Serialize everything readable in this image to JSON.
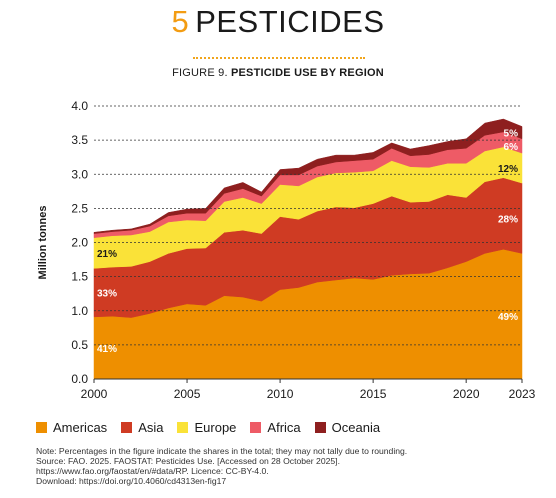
{
  "header": {
    "chapter_number": "5",
    "chapter_title": "PESTICIDES",
    "figure_prefix": "FIGURE 9. ",
    "figure_title": "PESTICIDE USE BY REGION"
  },
  "chart_data": {
    "type": "area",
    "stacked": true,
    "ylabel": "Million tonnes",
    "xlabel": "",
    "x": [
      2000,
      2001,
      2002,
      2003,
      2004,
      2005,
      2006,
      2007,
      2008,
      2009,
      2010,
      2011,
      2012,
      2013,
      2014,
      2015,
      2016,
      2017,
      2018,
      2019,
      2020,
      2021,
      2022,
      2023
    ],
    "xlim": [
      2000,
      2023
    ],
    "ylim": [
      0,
      4.0
    ],
    "grid": "horizontal-dotted",
    "x_ticks": [
      "2000",
      "2005",
      "2010",
      "2015",
      "2020",
      "2023"
    ],
    "x_tick_values": [
      2000,
      2005,
      2010,
      2015,
      2020,
      2023
    ],
    "y_ticks": [
      "0.0",
      "0.5",
      "1.0",
      "1.5",
      "2.0",
      "2.5",
      "3.0",
      "3.5",
      "4.0"
    ],
    "y_tick_values": [
      0,
      0.5,
      1.0,
      1.5,
      2.0,
      2.5,
      3.0,
      3.5,
      4.0
    ],
    "series": [
      {
        "name": "Americas",
        "color": "#ee8f00",
        "values": [
          0.91,
          0.92,
          0.9,
          0.96,
          1.04,
          1.1,
          1.08,
          1.22,
          1.2,
          1.14,
          1.31,
          1.34,
          1.42,
          1.45,
          1.48,
          1.46,
          1.52,
          1.54,
          1.55,
          1.63,
          1.72,
          1.84,
          1.9,
          1.84
        ]
      },
      {
        "name": "Asia",
        "color": "#cf3b23",
        "values": [
          0.71,
          0.72,
          0.75,
          0.76,
          0.8,
          0.81,
          0.84,
          0.93,
          0.98,
          0.99,
          1.07,
          1.0,
          1.04,
          1.07,
          1.03,
          1.11,
          1.16,
          1.05,
          1.05,
          1.07,
          0.94,
          1.05,
          1.05,
          1.03
        ]
      },
      {
        "name": "Europe",
        "color": "#fae238",
        "values": [
          0.45,
          0.46,
          0.46,
          0.44,
          0.46,
          0.42,
          0.4,
          0.45,
          0.48,
          0.44,
          0.47,
          0.49,
          0.5,
          0.5,
          0.52,
          0.48,
          0.52,
          0.52,
          0.5,
          0.46,
          0.5,
          0.45,
          0.45,
          0.44
        ]
      },
      {
        "name": "Africa",
        "color": "#ee5b66",
        "values": [
          0.06,
          0.06,
          0.07,
          0.08,
          0.09,
          0.1,
          0.11,
          0.12,
          0.13,
          0.11,
          0.14,
          0.16,
          0.16,
          0.16,
          0.17,
          0.17,
          0.18,
          0.16,
          0.19,
          0.2,
          0.22,
          0.23,
          0.22,
          0.21
        ]
      },
      {
        "name": "Oceania",
        "color": "#8e1f1f",
        "values": [
          0.02,
          0.02,
          0.02,
          0.03,
          0.05,
          0.06,
          0.07,
          0.08,
          0.09,
          0.06,
          0.08,
          0.1,
          0.1,
          0.1,
          0.08,
          0.1,
          0.08,
          0.1,
          0.13,
          0.12,
          0.14,
          0.18,
          0.19,
          0.18
        ]
      }
    ],
    "annotations": {
      "start": [
        {
          "series": "Americas",
          "label": "41%",
          "color": "#ffffff"
        },
        {
          "series": "Asia",
          "label": "33%",
          "color": "#ffffff"
        },
        {
          "series": "Europe",
          "label": "21%",
          "color": "#1a1a1a"
        }
      ],
      "end": [
        {
          "series": "Americas",
          "label": "49%",
          "color": "#ffffff"
        },
        {
          "series": "Asia",
          "label": "28%",
          "color": "#ffffff"
        },
        {
          "series": "Europe",
          "label": "12%",
          "color": "#1a1a1a"
        },
        {
          "series": "Africa",
          "label": "6%",
          "color": "#ffffff"
        },
        {
          "series": "Oceania",
          "label": "5%",
          "color": "#ffffff"
        }
      ]
    }
  },
  "notes": {
    "line1": "Note: Percentages in the figure indicate the shares in the total; they may not tally due to rounding.",
    "line2": "Source: FAO. 2025. FAOSTAT: Pesticides Use. [Accessed on 28 October 2025].",
    "line3": "https://www.fao.org/faostat/en/#data/RP. Licence: CC-BY-4.0.",
    "line4": "Download: https://doi.org/10.4060/cd4313en-fig17"
  }
}
